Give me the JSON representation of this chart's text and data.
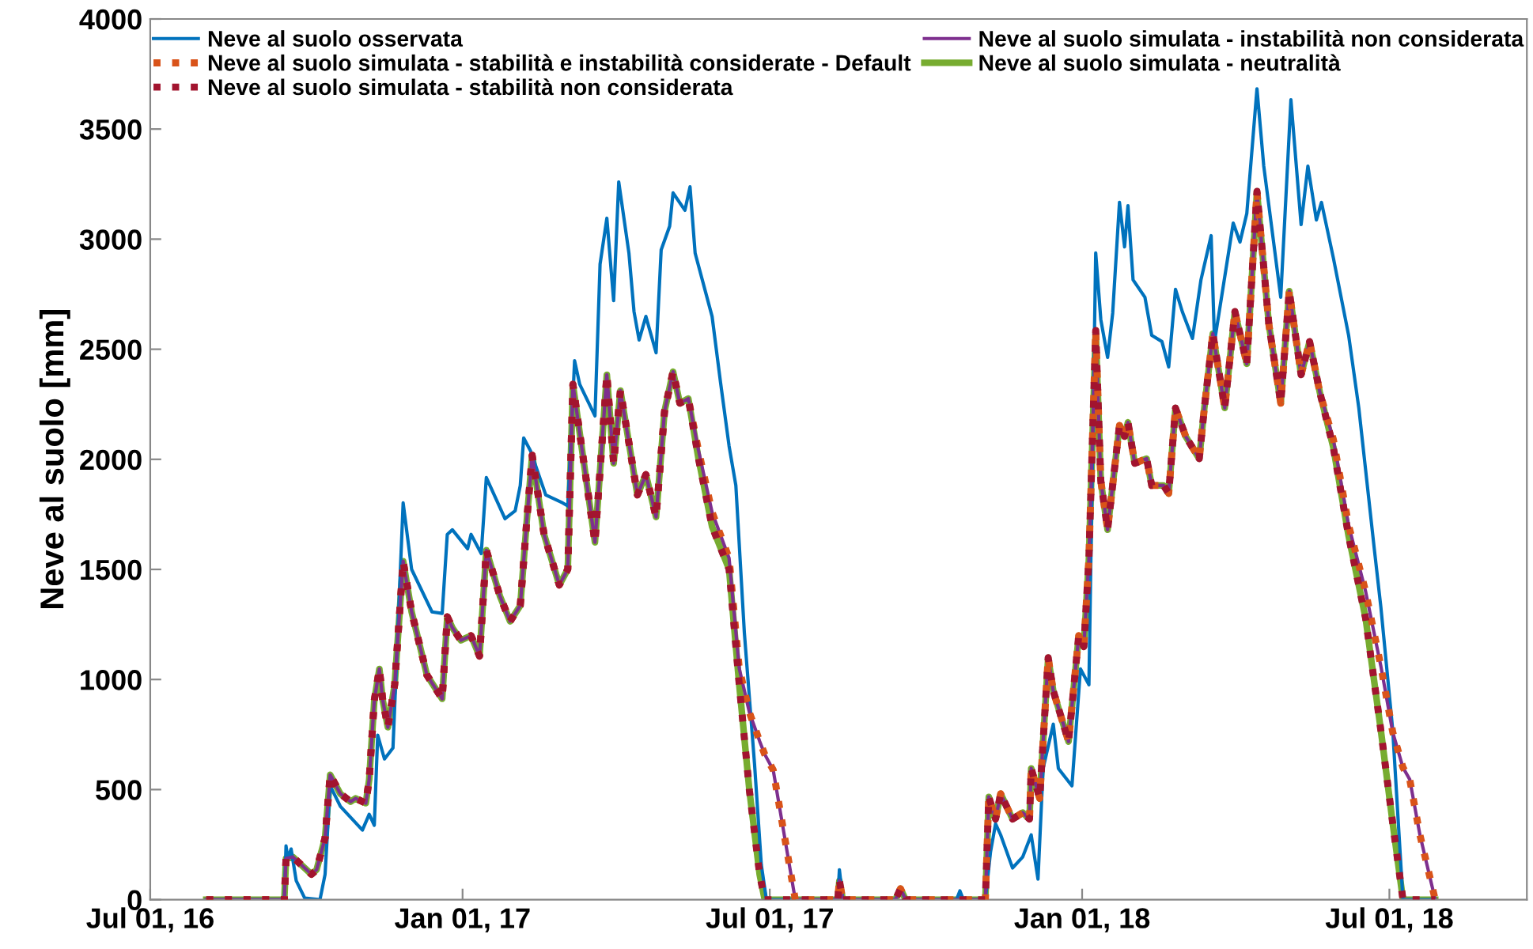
{
  "chart_data": {
    "type": "line",
    "ylabel": "Neve al suolo [mm]",
    "ylim": [
      0,
      4000
    ],
    "yticks": [
      0,
      500,
      1000,
      1500,
      2000,
      2500,
      3000,
      3500,
      4000
    ],
    "xlim": [
      "2016-07-01",
      "2018-09-20"
    ],
    "xticks": [
      {
        "value": "2016-07-01",
        "label": "Jul 01, 16"
      },
      {
        "value": "2017-01-01",
        "label": "Jan 01, 17"
      },
      {
        "value": "2017-07-01",
        "label": "Jul 01, 17"
      },
      {
        "value": "2018-01-01",
        "label": "Jan 01, 18"
      },
      {
        "value": "2018-07-01",
        "label": "Jul 01, 18"
      }
    ],
    "grid": false,
    "legend": "top",
    "marker": "none",
    "x": [
      "2016-08-03",
      "2016-09-18",
      "2016-09-19",
      "2016-09-23",
      "2016-10-04",
      "2016-10-07",
      "2016-10-12",
      "2016-10-15",
      "2016-10-21",
      "2016-10-27",
      "2016-10-30",
      "2016-11-05",
      "2016-11-07",
      "2016-11-10",
      "2016-11-13",
      "2016-11-15",
      "2016-11-18",
      "2016-11-22",
      "2016-11-27",
      "2016-12-02",
      "2016-12-11",
      "2016-12-20",
      "2016-12-23",
      "2016-12-26",
      "2016-12-31",
      "2017-01-06",
      "2017-01-11",
      "2017-01-15",
      "2017-01-23",
      "2017-01-29",
      "2017-02-04",
      "2017-02-08",
      "2017-02-11",
      "2017-02-18",
      "2017-02-27",
      "2017-03-04",
      "2017-03-07",
      "2017-03-20",
      "2017-03-27",
      "2017-03-31",
      "2017-04-04",
      "2017-04-14",
      "2017-04-19",
      "2017-04-25",
      "2017-04-30",
      "2017-05-05",
      "2017-05-09",
      "2017-05-14",
      "2017-05-20",
      "2017-05-28",
      "2017-06-07",
      "2017-06-13",
      "2017-06-19",
      "2017-06-25",
      "2017-06-28",
      "2017-07-03",
      "2017-07-16",
      "2017-08-10",
      "2017-08-11",
      "2017-08-13",
      "2017-09-13",
      "2017-09-16",
      "2017-09-19",
      "2017-11-05",
      "2017-11-07",
      "2017-11-11",
      "2017-11-14",
      "2017-11-21",
      "2017-11-27",
      "2017-12-01",
      "2017-12-02",
      "2017-12-07",
      "2017-12-12",
      "2017-12-15",
      "2017-12-24",
      "2017-12-30",
      "2018-01-02",
      "2018-01-05",
      "2018-01-09",
      "2018-01-12",
      "2018-01-16",
      "2018-01-23",
      "2018-01-26",
      "2018-01-28",
      "2018-02-01",
      "2018-02-08",
      "2018-02-11",
      "2018-02-18",
      "2018-02-21",
      "2018-02-25",
      "2018-03-03",
      "2018-03-11",
      "2018-03-14",
      "2018-03-19",
      "2018-03-26",
      "2018-04-01",
      "2018-04-08",
      "2018-04-14",
      "2018-04-21",
      "2018-04-28",
      "2018-05-03",
      "2018-05-10",
      "2018-05-15",
      "2018-05-21",
      "2018-05-29",
      "2018-06-07",
      "2018-06-17",
      "2018-06-26",
      "2018-07-03",
      "2018-07-09",
      "2018-07-13",
      "2018-07-19",
      "2018-07-28"
    ],
    "series": [
      {
        "name": "Neve al suolo osservata",
        "color": "#0072bd",
        "line_style": "solid",
        "x": [
          "2016-08-03",
          "2016-09-18",
          "2016-09-19",
          "2016-09-20",
          "2016-09-22",
          "2016-09-25",
          "2016-09-30",
          "2016-10-09",
          "2016-10-12",
          "2016-10-15",
          "2016-10-21",
          "2016-11-03",
          "2016-11-07",
          "2016-11-10",
          "2016-11-12",
          "2016-11-16",
          "2016-11-21",
          "2016-11-27",
          "2016-12-02",
          "2016-12-14",
          "2016-12-20",
          "2016-12-23",
          "2016-12-26",
          "2017-01-04",
          "2017-01-06",
          "2017-01-12",
          "2017-01-15",
          "2017-01-26",
          "2017-02-01",
          "2017-02-04",
          "2017-02-06",
          "2017-02-10",
          "2017-02-19",
          "2017-03-01",
          "2017-03-04",
          "2017-03-08",
          "2017-03-11",
          "2017-03-20",
          "2017-03-23",
          "2017-03-27",
          "2017-03-31",
          "2017-04-03",
          "2017-04-09",
          "2017-04-12",
          "2017-04-15",
          "2017-04-19",
          "2017-04-25",
          "2017-04-28",
          "2017-05-03",
          "2017-05-05",
          "2017-05-12",
          "2017-05-15",
          "2017-05-18",
          "2017-05-28",
          "2017-06-02",
          "2017-06-07",
          "2017-06-11",
          "2017-06-16",
          "2017-06-22",
          "2017-06-26",
          "2017-06-29",
          "2017-08-10",
          "2017-08-11",
          "2017-08-13",
          "2017-09-13",
          "2017-09-16",
          "2017-09-19",
          "2017-10-19",
          "2017-10-21",
          "2017-10-23",
          "2017-11-05",
          "2017-11-08",
          "2017-11-11",
          "2017-11-14",
          "2017-11-21",
          "2017-11-27",
          "2017-12-02",
          "2017-12-06",
          "2017-12-09",
          "2017-12-15",
          "2017-12-18",
          "2017-12-26",
          "2017-12-31",
          "2018-01-05",
          "2018-01-09",
          "2018-01-12",
          "2018-01-16",
          "2018-01-19",
          "2018-01-23",
          "2018-01-26",
          "2018-01-28",
          "2018-01-31",
          "2018-02-07",
          "2018-02-11",
          "2018-02-17",
          "2018-02-21",
          "2018-02-25",
          "2018-03-01",
          "2018-03-07",
          "2018-03-12",
          "2018-03-18",
          "2018-03-20",
          "2018-03-31",
          "2018-04-04",
          "2018-04-08",
          "2018-04-14",
          "2018-04-18",
          "2018-04-28",
          "2018-05-04",
          "2018-05-10",
          "2018-05-14",
          "2018-05-19",
          "2018-05-22",
          "2018-05-29",
          "2018-06-07",
          "2018-06-13",
          "2018-06-22",
          "2018-06-26",
          "2018-07-03",
          "2018-07-09",
          "2018-07-28"
        ],
        "values": [
          0,
          0,
          244,
          187,
          230,
          86,
          7,
          0,
          115,
          517,
          424,
          316,
          388,
          338,
          747,
          639,
          689,
          1802,
          1500,
          1307,
          1300,
          1659,
          1680,
          1594,
          1659,
          1572,
          1917,
          1730,
          1766,
          1881,
          2097,
          2039,
          1838,
          1802,
          1788,
          2448,
          2341,
          2197,
          2886,
          3095,
          2721,
          3260,
          2937,
          2671,
          2542,
          2649,
          2484,
          2951,
          3059,
          3210,
          3131,
          3238,
          2937,
          2649,
          2348,
          2061,
          1881,
          1213,
          617,
          158,
          0,
          0,
          136,
          0,
          0,
          50,
          0,
          0,
          40,
          0,
          0,
          215,
          345,
          294,
          144,
          194,
          294,
          93,
          596,
          797,
          596,
          517,
          1048,
          976,
          2937,
          2635,
          2463,
          2664,
          3167,
          2965,
          3152,
          2815,
          2736,
          2563,
          2535,
          2420,
          2772,
          2671,
          2549,
          2815,
          3016,
          2535,
          3073,
          2987,
          3116,
          3683,
          3332,
          2736,
          3633,
          3066,
          3332,
          3087,
          3167,
          2915,
          2563,
          2233,
          1601,
          1328,
          768,
          0,
          0
        ]
      },
      {
        "name": "Neve al suolo simulata - stabilità e instabilità considerate - Default",
        "color": "#d95319",
        "line_style": "dotted",
        "values": [
          0,
          0,
          187,
          194,
          115,
          136,
          280,
          567,
          481,
          445,
          460,
          438,
          546,
          905,
          1048,
          905,
          783,
          976,
          1537,
          1307,
          1020,
          912,
          1285,
          1235,
          1178,
          1199,
          1106,
          1587,
          1379,
          1264,
          1336,
          1738,
          2018,
          1659,
          1429,
          1501,
          2341,
          1623,
          2384,
          1982,
          2312,
          1838,
          1931,
          1738,
          2219,
          2398,
          2255,
          2276,
          2040,
          1760,
          1551,
          1050,
          850,
          720,
          660,
          589,
          0,
          0,
          86,
          0,
          0,
          50,
          0,
          0,
          467,
          366,
          481,
          366,
          395,
          366,
          596,
          460,
          1099,
          948,
          718,
          1199,
          1149,
          1551,
          2585,
          1903,
          1680,
          2154,
          2104,
          2168,
          1982,
          2003,
          1881,
          1881,
          1845,
          2233,
          2104,
          2003,
          2233,
          2571,
          2233,
          2671,
          2434,
          3217,
          2614,
          2255,
          2764,
          2384,
          2535,
          2305,
          2090,
          1700,
          1400,
          1060,
          760,
          600,
          546,
          294,
          0
        ]
      },
      {
        "name": "Neve al suolo simulata - stabilità non considerata",
        "color": "#a2142f",
        "line_style": "dotted",
        "values": [
          0,
          0,
          187,
          194,
          115,
          136,
          280,
          567,
          481,
          445,
          460,
          438,
          546,
          905,
          1048,
          905,
          783,
          976,
          1537,
          1307,
          1020,
          912,
          1285,
          1235,
          1178,
          1199,
          1106,
          1587,
          1379,
          1264,
          1336,
          1738,
          2018,
          1659,
          1429,
          1501,
          2341,
          1623,
          2384,
          1982,
          2312,
          1838,
          1931,
          1738,
          2219,
          2398,
          2255,
          2276,
          2003,
          1694,
          1501,
          976,
          495,
          115,
          0,
          0,
          0,
          0,
          86,
          0,
          0,
          50,
          0,
          0,
          467,
          366,
          481,
          366,
          395,
          366,
          596,
          460,
          1099,
          948,
          718,
          1199,
          1149,
          1551,
          2585,
          1903,
          1680,
          2154,
          2104,
          2168,
          1982,
          2003,
          1881,
          1881,
          1845,
          2233,
          2104,
          2003,
          2233,
          2571,
          2233,
          2671,
          2434,
          3217,
          2614,
          2255,
          2764,
          2384,
          2535,
          2305,
          2053,
          1651,
          1278,
          768,
          345,
          0,
          0,
          0,
          0
        ]
      },
      {
        "name": "Neve al suolo simulata - instabilità non considerata",
        "color": "#7e2f8e",
        "line_style": "solid",
        "values": [
          0,
          0,
          187,
          194,
          115,
          136,
          280,
          567,
          481,
          445,
          460,
          438,
          546,
          905,
          1048,
          905,
          783,
          976,
          1537,
          1307,
          1020,
          912,
          1285,
          1235,
          1178,
          1199,
          1106,
          1587,
          1379,
          1264,
          1336,
          1738,
          2018,
          1659,
          1429,
          1501,
          2341,
          1623,
          2384,
          1982,
          2312,
          1838,
          1931,
          1738,
          2219,
          2398,
          2255,
          2276,
          2040,
          1760,
          1551,
          1050,
          850,
          720,
          660,
          589,
          0,
          0,
          86,
          0,
          0,
          50,
          0,
          0,
          467,
          366,
          481,
          366,
          395,
          366,
          596,
          460,
          1099,
          948,
          718,
          1199,
          1149,
          1551,
          2585,
          1903,
          1680,
          2154,
          2104,
          2168,
          1982,
          2003,
          1881,
          1881,
          1845,
          2233,
          2104,
          2003,
          2233,
          2571,
          2233,
          2671,
          2434,
          3217,
          2614,
          2255,
          2764,
          2384,
          2535,
          2305,
          2090,
          1700,
          1400,
          1060,
          760,
          600,
          546,
          294,
          0
        ]
      },
      {
        "name": "Neve al suolo simulata - neutralità",
        "color": "#77ac30",
        "line_style": "solid",
        "values": [
          0,
          0,
          187,
          194,
          115,
          136,
          280,
          567,
          481,
          445,
          460,
          438,
          546,
          905,
          1048,
          905,
          783,
          976,
          1537,
          1307,
          1020,
          912,
          1285,
          1235,
          1178,
          1199,
          1106,
          1587,
          1379,
          1264,
          1336,
          1738,
          2018,
          1659,
          1429,
          1501,
          2341,
          1623,
          2384,
          1982,
          2312,
          1838,
          1931,
          1738,
          2219,
          2398,
          2255,
          2276,
          2003,
          1694,
          1501,
          976,
          495,
          115,
          0,
          0,
          0,
          0,
          86,
          0,
          0,
          50,
          0,
          0,
          467,
          366,
          481,
          366,
          395,
          366,
          596,
          460,
          1099,
          948,
          718,
          1199,
          1149,
          1551,
          2585,
          1903,
          1680,
          2154,
          2104,
          2168,
          1982,
          2003,
          1881,
          1881,
          1845,
          2233,
          2104,
          2003,
          2233,
          2571,
          2233,
          2671,
          2434,
          3217,
          2614,
          2255,
          2764,
          2384,
          2535,
          2305,
          2053,
          1651,
          1278,
          768,
          345,
          0,
          0,
          0,
          0
        ]
      }
    ]
  }
}
